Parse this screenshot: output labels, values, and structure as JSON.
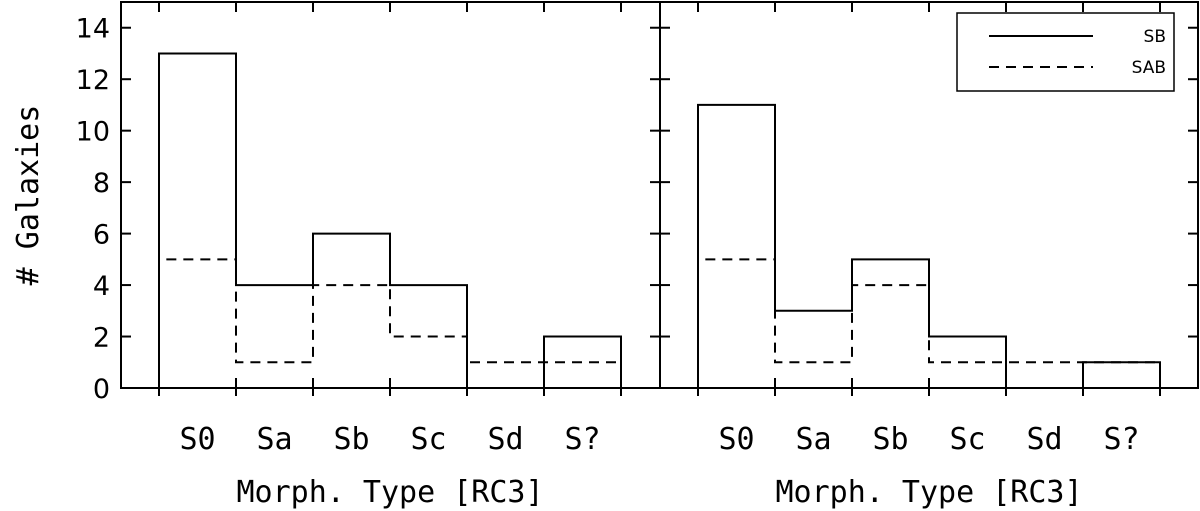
{
  "chart_data": [
    {
      "type": "histogram",
      "categories": [
        "S0",
        "Sa",
        "Sb",
        "Sc",
        "Sd",
        "S?"
      ],
      "series": [
        {
          "name": "SB",
          "style": "solid",
          "values": [
            13,
            4,
            6,
            4,
            0,
            2
          ]
        },
        {
          "name": "SAB",
          "style": "dashed",
          "values": [
            5,
            1,
            4,
            2,
            1,
            1
          ]
        }
      ],
      "xlabel": "Morph. Type [RC3]",
      "ylabel": "# Galaxies",
      "ylim": [
        0,
        15
      ],
      "yticks": [
        0,
        2,
        4,
        6,
        8,
        10,
        12,
        14
      ],
      "legend": null
    },
    {
      "type": "histogram",
      "categories": [
        "S0",
        "Sa",
        "Sb",
        "Sc",
        "Sd",
        "S?"
      ],
      "series": [
        {
          "name": "SB",
          "style": "solid",
          "values": [
            11,
            3,
            5,
            2,
            0,
            1
          ]
        },
        {
          "name": "SAB",
          "style": "dashed",
          "values": [
            5,
            1,
            4,
            1,
            1,
            1
          ]
        }
      ],
      "xlabel": "Morph. Type [RC3]",
      "ylabel": "",
      "ylim": [
        0,
        15
      ],
      "yticks": [
        0,
        2,
        4,
        6,
        8,
        10,
        12,
        14
      ],
      "legend": {
        "placement": "top-right",
        "entries": [
          "SB",
          "SAB"
        ]
      }
    }
  ]
}
